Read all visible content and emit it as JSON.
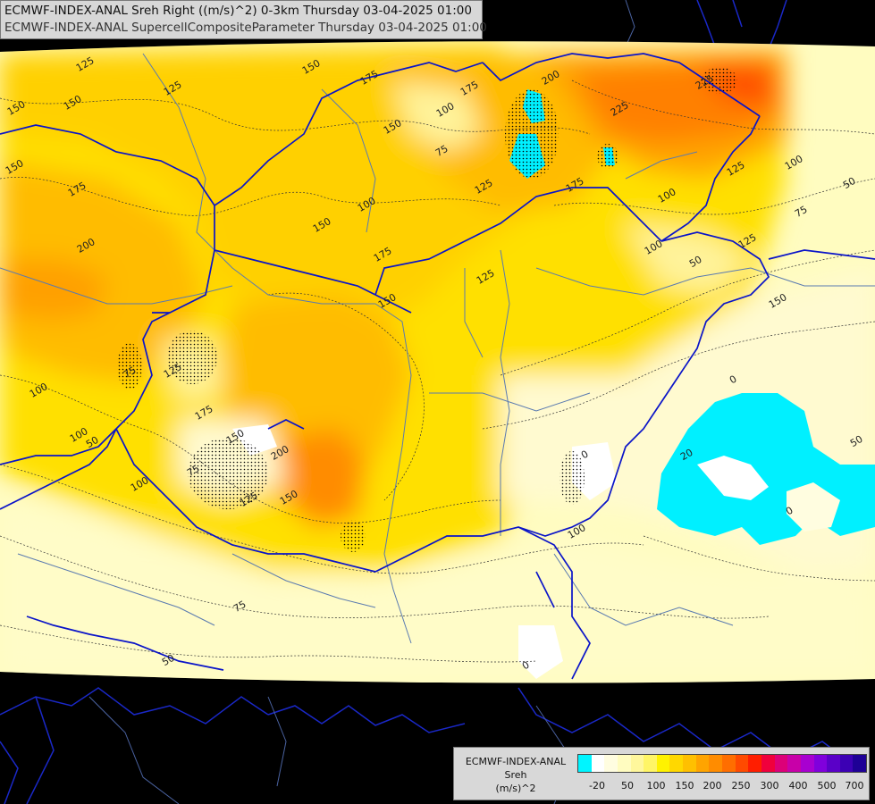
{
  "header": {
    "line1": "ECMWF-INDEX-ANAL Sreh Right ((m/s)^2) 0-3km Thursday 03-04-2025 01:00",
    "line2": "ECMWF-INDEX-ANAL SupercellCompositeParameter Thursday 03-04-2025 01:00"
  },
  "legend": {
    "title": "ECMWF-INDEX-ANAL",
    "variable": "Sreh",
    "units": "(m/s)^2",
    "tick_labels": [
      "-20",
      "50",
      "100",
      "150",
      "200",
      "250",
      "300",
      "400",
      "500",
      "700"
    ],
    "colors": [
      "#00f5ff",
      "#ffffff",
      "#fffde0",
      "#fffcc0",
      "#fff79c",
      "#fff566",
      "#fff200",
      "#ffd800",
      "#ffc000",
      "#ffa400",
      "#ff8c00",
      "#ff6e00",
      "#ff4a00",
      "#ff1e00",
      "#f0003c",
      "#dc0078",
      "#c800a8",
      "#a800d0",
      "#8000dc",
      "#5a00c8",
      "#3c00b4",
      "#1e0096"
    ]
  },
  "map": {
    "contour_labels": [
      "125",
      "125",
      "150",
      "150",
      "150",
      "175",
      "150",
      "175",
      "200",
      "150",
      "100",
      "150",
      "100",
      "175",
      "75",
      "175",
      "150",
      "75",
      "125",
      "100",
      "200",
      "150",
      "75",
      "50",
      "100",
      "125",
      "150",
      "175",
      "125",
      "125",
      "200",
      "225",
      "225",
      "175",
      "125",
      "100",
      "100",
      "50",
      "100",
      "150",
      "75",
      "125",
      "100",
      "50",
      "0",
      "20",
      "50",
      "0",
      "0",
      "50",
      "100",
      "0",
      "75"
    ],
    "colors": {
      "background": "#000000",
      "border": "#0a14c8",
      "river": "#5a7ab0",
      "cape_area": "#00f0ff",
      "low": "#fffcc0",
      "mid": "#fff200",
      "high": "#ffb400",
      "max": "#ff6e00"
    }
  }
}
